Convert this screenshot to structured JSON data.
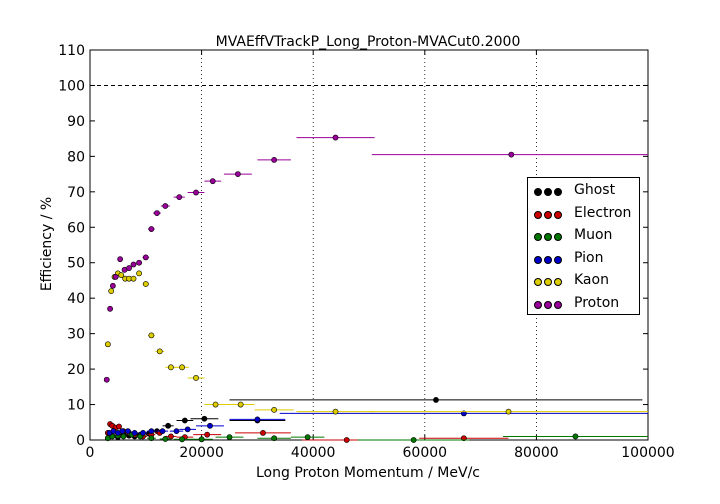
{
  "chart_data": {
    "type": "scatter",
    "title": "MVAEffVTrackP_Long_Proton-MVACut0.2000",
    "xlabel": "Long Proton Momentum / MeV/c",
    "ylabel": "Efficiency / %",
    "xlim": [
      0,
      100000
    ],
    "ylim": [
      0,
      110
    ],
    "xticks": [
      "0",
      "20000",
      "40000",
      "60000",
      "80000",
      "100000"
    ],
    "yticks": [
      "0",
      "10",
      "20",
      "30",
      "40",
      "50",
      "60",
      "70",
      "80",
      "90",
      "100",
      "110"
    ],
    "reference_line_y": 100,
    "legend_position": "center-right",
    "series": [
      {
        "name": "Ghost",
        "color": "#000000",
        "x": [
          3200,
          4000,
          5000,
          6000,
          7000,
          8000,
          9000,
          10500,
          12000,
          14000,
          17000,
          20500,
          30000,
          62000
        ],
        "xerr": [
          400,
          400,
          500,
          500,
          500,
          500,
          500,
          700,
          800,
          1000,
          1500,
          2500,
          5000,
          37000
        ],
        "y": [
          0.5,
          1.2,
          0.8,
          1.5,
          1.2,
          1.0,
          1.5,
          1.8,
          2.5,
          4.0,
          5.5,
          6.0,
          5.5,
          11.3
        ]
      },
      {
        "name": "Electron",
        "color": "#cc0000",
        "x": [
          3200,
          3600,
          4000,
          4600,
          5200,
          6000,
          7000,
          8000,
          9500,
          11000,
          12500,
          14500,
          17000,
          21000,
          31000,
          46000,
          67000
        ],
        "xerr": [
          200,
          200,
          300,
          300,
          300,
          400,
          500,
          500,
          700,
          700,
          800,
          1000,
          1500,
          2500,
          5000,
          8000,
          8000
        ],
        "y": [
          2.0,
          4.5,
          4.0,
          3.5,
          3.8,
          2.5,
          2.0,
          1.5,
          1.0,
          1.5,
          2.0,
          1.0,
          0.8,
          1.5,
          2.0,
          0.0,
          0.5
        ]
      },
      {
        "name": "Muon",
        "color": "#007700",
        "x": [
          3200,
          4000,
          5000,
          6000,
          7500,
          9000,
          11000,
          13500,
          16500,
          20000,
          25000,
          33000,
          39000,
          58000,
          87000
        ],
        "xerr": [
          200,
          300,
          400,
          500,
          700,
          700,
          800,
          1000,
          1500,
          2000,
          2500,
          3000,
          3000,
          10000,
          13000
        ],
        "y": [
          0.5,
          1.0,
          1.2,
          1.0,
          1.5,
          1.0,
          0.5,
          0.3,
          0.2,
          0.2,
          0.8,
          0.5,
          0.8,
          0.0,
          1.0
        ]
      },
      {
        "name": "Pion",
        "color": "#0000cc",
        "x": [
          3500,
          4200,
          5000,
          5800,
          6800,
          8000,
          9500,
          11000,
          13000,
          15500,
          17500,
          21500,
          30000,
          67000
        ],
        "xerr": [
          200,
          300,
          300,
          400,
          500,
          600,
          700,
          800,
          1000,
          1200,
          1500,
          2500,
          5000,
          33000
        ],
        "y": [
          2.0,
          2.5,
          2.0,
          2.5,
          2.5,
          2.0,
          2.0,
          2.5,
          2.5,
          2.5,
          3.0,
          4.0,
          5.8,
          7.5
        ]
      },
      {
        "name": "Kaon",
        "color": "#ddcc00",
        "x": [
          3200,
          3800,
          4400,
          5000,
          5600,
          6300,
          7000,
          7800,
          8800,
          10000,
          11000,
          12500,
          14500,
          16500,
          19000,
          22500,
          27000,
          33000,
          44000,
          75000
        ],
        "xerr": [
          200,
          300,
          300,
          300,
          300,
          400,
          400,
          500,
          500,
          600,
          600,
          800,
          1000,
          1200,
          1500,
          2000,
          2500,
          3500,
          7000,
          25000
        ],
        "y": [
          27.0,
          42.0,
          46.0,
          47.0,
          46.5,
          45.5,
          45.5,
          45.5,
          47.0,
          44.0,
          29.5,
          25.0,
          20.5,
          20.5,
          17.5,
          10.0,
          10.0,
          8.5,
          8.0,
          8.0
        ]
      },
      {
        "name": "Proton",
        "color": "#990099",
        "x": [
          3000,
          3600,
          4100,
          4600,
          5400,
          6200,
          7000,
          7800,
          8800,
          10000,
          11000,
          12000,
          13500,
          16000,
          19000,
          22000,
          26500,
          33000,
          44000,
          75500
        ],
        "xerr": [
          200,
          200,
          300,
          300,
          300,
          400,
          400,
          400,
          500,
          600,
          600,
          700,
          800,
          1000,
          1500,
          1500,
          2500,
          3000,
          7000,
          25000
        ],
        "y": [
          17.0,
          37.0,
          43.5,
          46.0,
          51.0,
          48.0,
          48.5,
          49.5,
          50.0,
          51.5,
          59.5,
          64.0,
          66.0,
          68.5,
          69.8,
          73.0,
          75.0,
          79.0,
          85.3,
          80.5
        ]
      }
    ]
  }
}
